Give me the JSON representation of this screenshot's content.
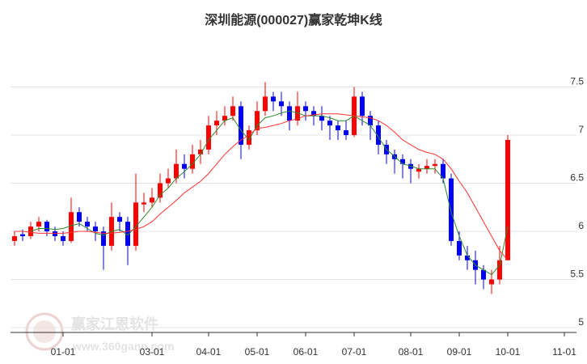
{
  "chart_data": {
    "type": "candlestick",
    "title": "深圳能源(000027)赢家乾坤K线",
    "categories": [
      null,
      null,
      null,
      null,
      null,
      null,
      "01-01",
      null,
      null,
      null,
      null,
      null,
      null,
      null,
      null,
      null,
      null,
      "03-01",
      null,
      null,
      null,
      null,
      null,
      null,
      "04-01",
      null,
      null,
      null,
      null,
      null,
      "05-01",
      null,
      null,
      null,
      null,
      null,
      "06-01",
      null,
      null,
      null,
      null,
      null,
      "07-01",
      null,
      null,
      null,
      null,
      null,
      null,
      "08-01",
      null,
      null,
      null,
      null,
      null,
      "09-01",
      null,
      null,
      null,
      null,
      null,
      "10-01",
      null,
      null,
      null,
      null,
      null,
      null,
      "11-01",
      null
    ],
    "open": [
      5.9,
      5.97,
      5.95,
      6.05,
      6.1,
      6.0,
      5.95,
      5.9,
      6.2,
      6.1,
      6.05,
      6.0,
      5.85,
      6.15,
      6.1,
      5.85,
      6.28,
      6.3,
      6.35,
      6.5,
      6.55,
      6.7,
      6.65,
      6.8,
      6.85,
      7.1,
      7.15,
      7.2,
      7.3,
      6.9,
      7.05,
      7.25,
      7.4,
      7.35,
      7.3,
      7.15,
      7.3,
      7.25,
      7.2,
      7.15,
      7.1,
      7.05,
      7.0,
      7.4,
      7.2,
      7.1,
      6.9,
      6.8,
      6.75,
      6.7,
      6.62,
      6.65,
      6.68,
      6.7,
      6.55,
      5.9,
      5.75,
      5.7,
      5.6,
      5.45,
      5.5,
      5.7,
      null,
      null,
      null,
      null,
      null,
      null,
      null,
      null
    ],
    "high": [
      6.0,
      6.02,
      6.1,
      6.15,
      6.12,
      6.05,
      6.0,
      6.35,
      6.25,
      6.15,
      6.1,
      6.05,
      6.3,
      6.2,
      6.15,
      6.6,
      6.4,
      6.45,
      6.6,
      6.65,
      6.85,
      6.8,
      6.9,
      6.95,
      7.2,
      7.25,
      7.3,
      7.4,
      7.35,
      7.1,
      7.35,
      7.55,
      7.45,
      7.45,
      7.35,
      7.45,
      7.35,
      7.3,
      7.3,
      7.2,
      7.15,
      7.15,
      7.5,
      7.45,
      7.25,
      7.15,
      6.95,
      6.85,
      6.8,
      6.75,
      6.7,
      6.75,
      6.75,
      6.75,
      6.6,
      6.0,
      5.85,
      5.8,
      5.65,
      5.6,
      5.85,
      7.0,
      null,
      null,
      null,
      null,
      null,
      null,
      null,
      null
    ],
    "low": [
      5.85,
      5.9,
      5.92,
      6.0,
      5.95,
      5.9,
      5.85,
      5.88,
      6.05,
      6.0,
      5.9,
      5.6,
      5.8,
      6.0,
      5.65,
      5.8,
      6.2,
      6.25,
      6.3,
      6.45,
      6.5,
      6.55,
      6.6,
      6.7,
      6.8,
      7.0,
      7.1,
      7.15,
      6.75,
      6.85,
      7.0,
      7.2,
      7.25,
      7.2,
      7.05,
      7.1,
      7.15,
      7.1,
      7.05,
      6.95,
      6.95,
      6.95,
      6.98,
      7.1,
      6.95,
      6.8,
      6.7,
      6.6,
      6.55,
      6.5,
      6.55,
      6.6,
      6.6,
      6.5,
      5.85,
      5.7,
      5.6,
      5.45,
      5.4,
      5.35,
      5.45,
      5.7,
      null,
      null,
      null,
      null,
      null,
      null,
      null,
      null
    ],
    "close": [
      5.95,
      5.95,
      6.05,
      6.1,
      6.0,
      5.95,
      5.9,
      6.2,
      6.1,
      6.05,
      6.0,
      5.85,
      6.15,
      6.1,
      5.85,
      6.3,
      6.3,
      6.35,
      6.5,
      6.55,
      6.7,
      6.65,
      6.8,
      6.85,
      7.1,
      7.15,
      7.2,
      7.3,
      6.9,
      7.05,
      7.25,
      7.4,
      7.35,
      7.3,
      7.15,
      7.3,
      7.25,
      7.2,
      7.15,
      7.1,
      7.05,
      7.0,
      7.4,
      7.2,
      7.1,
      6.9,
      6.8,
      6.75,
      6.7,
      6.65,
      6.65,
      6.68,
      6.7,
      6.55,
      5.9,
      5.75,
      5.7,
      5.6,
      5.5,
      5.5,
      5.7,
      6.95,
      null,
      null,
      null,
      null,
      null,
      null,
      null,
      null
    ],
    "up_color": "#ff0000",
    "down_color": "#0000ff",
    "lines": [
      {
        "color": "#2e8b2e",
        "values": [
          null,
          null,
          6.0,
          6.03,
          6.03,
          6.02,
          6.03,
          6.06,
          6.08,
          6.03,
          5.98,
          5.96,
          6.0,
          6.02,
          5.96,
          6.05,
          6.15,
          6.25,
          6.38,
          6.45,
          6.55,
          6.62,
          6.7,
          6.8,
          6.95,
          7.05,
          7.15,
          7.18,
          7.05,
          6.95,
          7.1,
          7.18,
          7.2,
          7.23,
          7.25,
          7.23,
          7.2,
          7.2,
          7.2,
          7.18,
          7.15,
          7.15,
          7.2,
          7.15,
          7.1,
          6.98,
          6.85,
          6.78,
          6.7,
          6.68,
          6.65,
          6.65,
          6.65,
          6.55,
          6.2,
          5.95,
          5.75,
          5.65,
          5.6,
          5.55,
          5.65,
          6.05,
          null,
          null,
          null,
          null,
          null,
          null,
          null,
          null
        ]
      },
      {
        "color": "#ff3030",
        "values": [
          6.0,
          6.0,
          5.99,
          5.98,
          5.98,
          5.98,
          5.98,
          5.99,
          6.0,
          6.0,
          5.99,
          5.98,
          5.98,
          5.99,
          6.0,
          6.02,
          6.05,
          6.1,
          6.18,
          6.25,
          6.32,
          6.4,
          6.46,
          6.52,
          6.6,
          6.7,
          6.8,
          6.88,
          6.95,
          7.0,
          7.07,
          7.08,
          7.1,
          7.12,
          7.15,
          7.17,
          7.2,
          7.21,
          7.22,
          7.22,
          7.22,
          7.21,
          7.2,
          7.19,
          7.18,
          7.15,
          7.1,
          7.03,
          6.95,
          6.9,
          6.85,
          6.82,
          6.8,
          6.75,
          6.65,
          6.52,
          6.4,
          6.25,
          6.1,
          5.95,
          5.8,
          5.7,
          null,
          null,
          null,
          null,
          null,
          null,
          null,
          null
        ]
      }
    ],
    "ylim": [
      4.95,
      8
    ],
    "yticks": [
      5,
      5.5,
      6,
      6.5,
      7,
      7.5
    ],
    "grid": true
  },
  "watermark": {
    "name": "赢家江恩软件",
    "url": "www.360gann.com"
  }
}
